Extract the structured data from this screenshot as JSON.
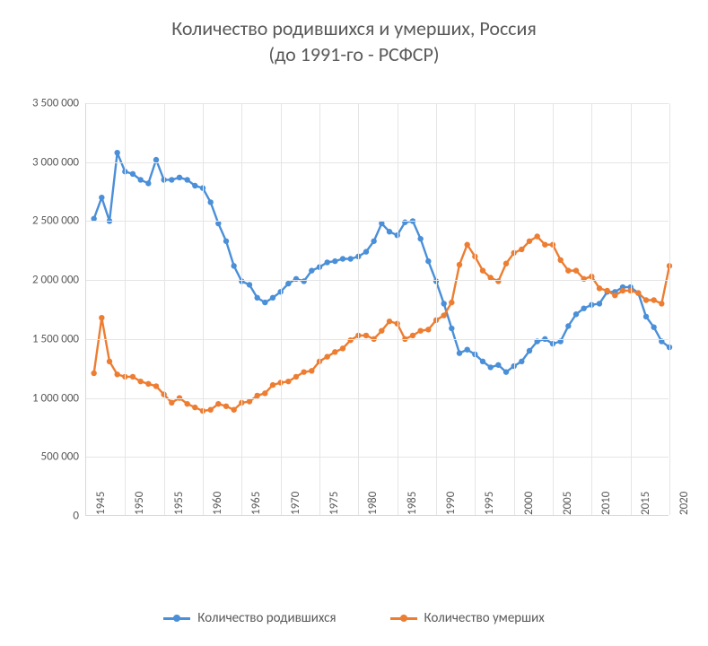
{
  "chart": {
    "type": "line",
    "title_line1": "Количество родившихся и умерших, Россия",
    "title_line2": "(до 1991-го - РСФСР)",
    "title_fontsize": 22,
    "label_fontsize": 13,
    "text_color": "#595959",
    "background_color": "#ffffff",
    "grid_color": "#e5e5e5",
    "axis_color": "#d9d9d9",
    "xlim": [
      1945,
      2020
    ],
    "ylim": [
      0,
      3500000
    ],
    "ytick_step": 500000,
    "ytick_labels": [
      "0",
      "500 000",
      "1 000 000",
      "1 500 000",
      "2 000 000",
      "2 500 000",
      "3 000 000",
      "3 500 000"
    ],
    "xtick_step": 5,
    "xtick_labels": [
      "1945",
      "1950",
      "1955",
      "1960",
      "1965",
      "1970",
      "1975",
      "1980",
      "1985",
      "1990",
      "1995",
      "2000",
      "2005",
      "2010",
      "2015",
      "2020"
    ],
    "marker_radius": 3.2,
    "line_width": 2.4,
    "series": [
      {
        "id": "births",
        "label": "Количество родившихся",
        "color": "#4a8fd8",
        "years": [
          1946,
          1947,
          1948,
          1949,
          1950,
          1951,
          1952,
          1953,
          1954,
          1955,
          1956,
          1957,
          1958,
          1959,
          1960,
          1961,
          1962,
          1963,
          1964,
          1965,
          1966,
          1967,
          1968,
          1969,
          1970,
          1971,
          1972,
          1973,
          1974,
          1975,
          1976,
          1977,
          1978,
          1979,
          1980,
          1981,
          1982,
          1983,
          1984,
          1985,
          1986,
          1987,
          1988,
          1989,
          1990,
          1991,
          1992,
          1993,
          1994,
          1995,
          1996,
          1997,
          1998,
          1999,
          2000,
          2001,
          2002,
          2003,
          2004,
          2005,
          2006,
          2007,
          2008,
          2009,
          2010,
          2011,
          2012,
          2013,
          2014,
          2015,
          2016,
          2017,
          2018,
          2019,
          2020
        ],
        "values": [
          2520000,
          2700000,
          2500000,
          3080000,
          2920000,
          2900000,
          2850000,
          2820000,
          3020000,
          2850000,
          2850000,
          2870000,
          2850000,
          2800000,
          2780000,
          2660000,
          2480000,
          2330000,
          2120000,
          1990000,
          1960000,
          1850000,
          1810000,
          1850000,
          1900000,
          1970000,
          2010000,
          1990000,
          2080000,
          2110000,
          2150000,
          2160000,
          2180000,
          2180000,
          2200000,
          2240000,
          2330000,
          2480000,
          2410000,
          2380000,
          2490000,
          2500000,
          2350000,
          2160000,
          1990000,
          1800000,
          1590000,
          1380000,
          1410000,
          1370000,
          1310000,
          1260000,
          1280000,
          1220000,
          1270000,
          1310000,
          1400000,
          1480000,
          1500000,
          1460000,
          1480000,
          1610000,
          1710000,
          1760000,
          1790000,
          1800000,
          1900000,
          1900000,
          1940000,
          1940000,
          1890000,
          1690000,
          1600000,
          1480000,
          1430000
        ]
      },
      {
        "id": "deaths",
        "label": "Количество умерших",
        "color": "#ed7d31",
        "years": [
          1946,
          1947,
          1948,
          1949,
          1950,
          1951,
          1952,
          1953,
          1954,
          1955,
          1956,
          1957,
          1958,
          1959,
          1960,
          1961,
          1962,
          1963,
          1964,
          1965,
          1966,
          1967,
          1968,
          1969,
          1970,
          1971,
          1972,
          1973,
          1974,
          1975,
          1976,
          1977,
          1978,
          1979,
          1980,
          1981,
          1982,
          1983,
          1984,
          1985,
          1986,
          1987,
          1988,
          1989,
          1990,
          1991,
          1992,
          1993,
          1994,
          1995,
          1996,
          1997,
          1998,
          1999,
          2000,
          2001,
          2002,
          2003,
          2004,
          2005,
          2006,
          2007,
          2008,
          2009,
          2010,
          2011,
          2012,
          2013,
          2014,
          2015,
          2016,
          2017,
          2018,
          2019,
          2020
        ],
        "values": [
          1210000,
          1680000,
          1310000,
          1200000,
          1180000,
          1180000,
          1140000,
          1120000,
          1100000,
          1030000,
          960000,
          1000000,
          950000,
          920000,
          890000,
          900000,
          950000,
          930000,
          900000,
          960000,
          970000,
          1020000,
          1040000,
          1110000,
          1130000,
          1140000,
          1180000,
          1220000,
          1230000,
          1310000,
          1350000,
          1390000,
          1420000,
          1490000,
          1530000,
          1530000,
          1500000,
          1570000,
          1650000,
          1630000,
          1500000,
          1530000,
          1570000,
          1580000,
          1660000,
          1700000,
          1810000,
          2130000,
          2300000,
          2200000,
          2080000,
          2020000,
          1990000,
          2140000,
          2230000,
          2260000,
          2330000,
          2370000,
          2300000,
          2300000,
          2170000,
          2080000,
          2080000,
          2010000,
          2030000,
          1930000,
          1910000,
          1870000,
          1910000,
          1910000,
          1890000,
          1830000,
          1830000,
          1800000,
          2120000
        ]
      }
    ],
    "legend_position": "bottom"
  }
}
